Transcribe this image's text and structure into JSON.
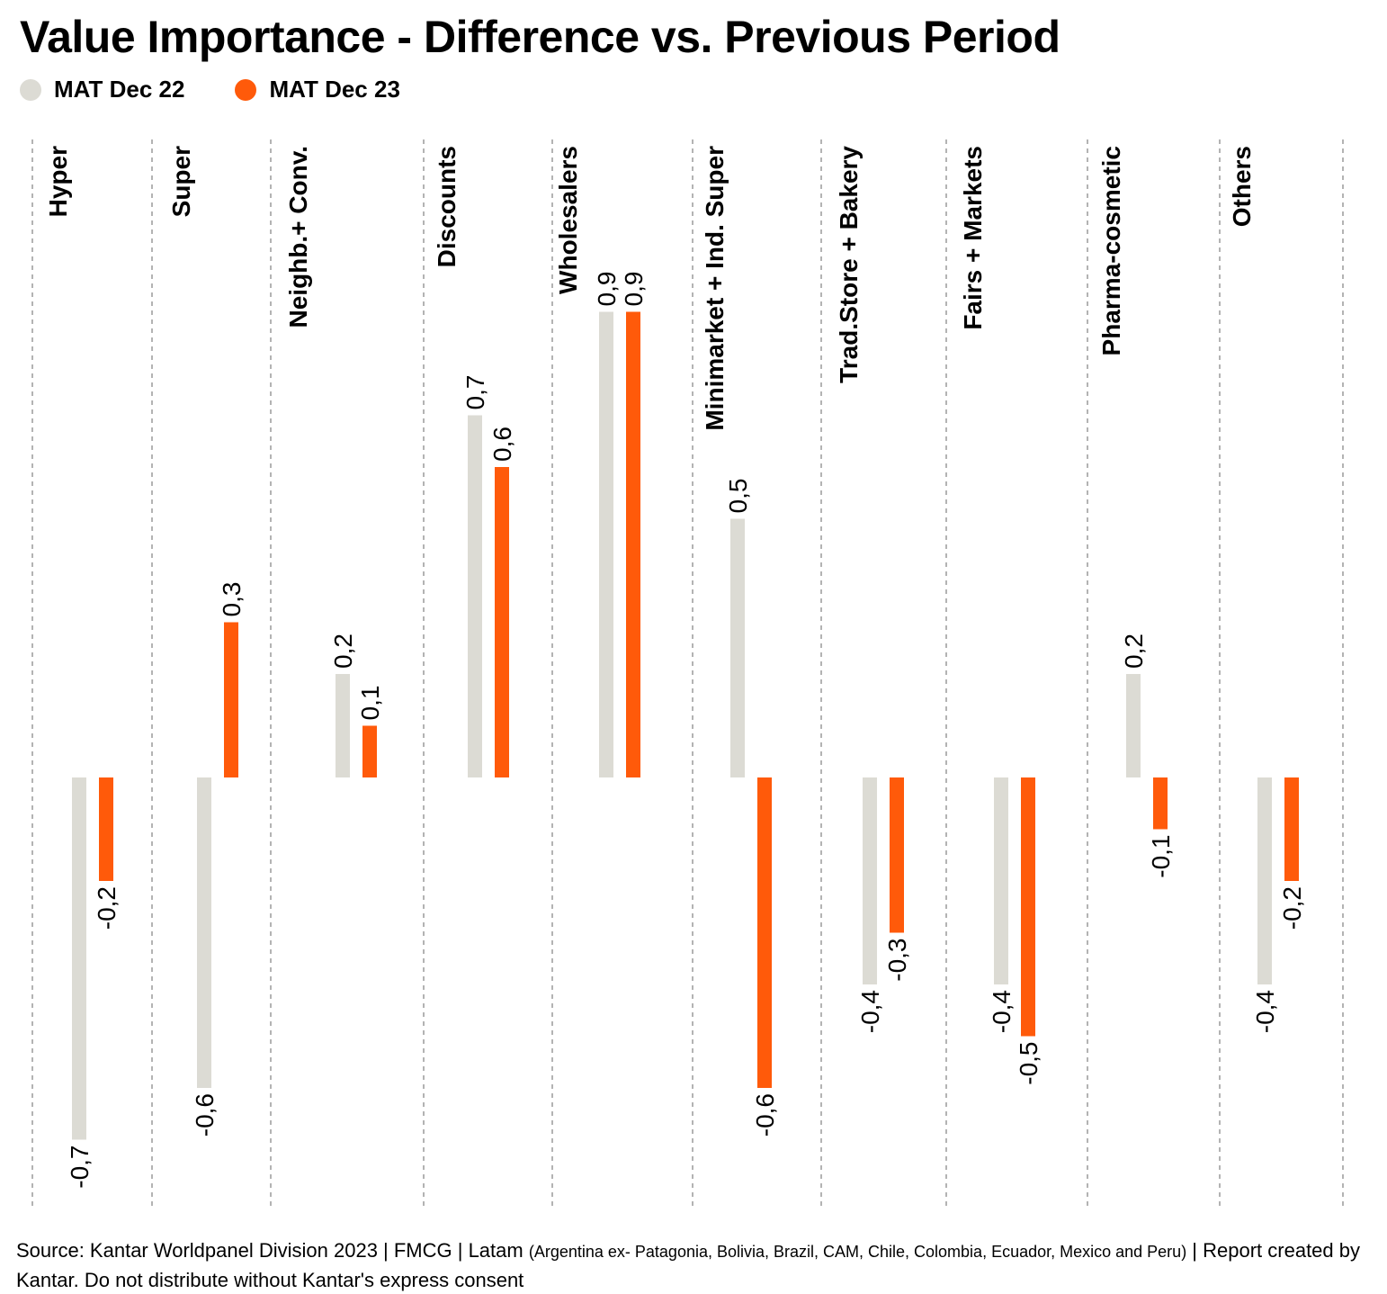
{
  "title": "Value Importance - Difference vs. Previous Period",
  "legend": [
    {
      "label": "MAT Dec 22",
      "color": "#dcdbd4"
    },
    {
      "label": "MAT Dec 23",
      "color": "#ff5a0a"
    }
  ],
  "source": {
    "main": "Source: Kantar Worldpanel Division 2023 | FMCG | Latam ",
    "countries": "(Argentina ex- Patagonia, Bolivia, Brazil, CAM, Chile, Colombia, Ecuador, Mexico and Peru)",
    "tail": " | Report created by Kantar. Do not distribute without Kantar's express consent"
  },
  "chart_data": {
    "type": "bar",
    "categories": [
      "Hyper",
      "Super",
      "Neighb.+ Conv.",
      "Discounts",
      "Wholesalers",
      "Minimarket + Ind. Super",
      "Trad.Store + Bakery",
      "Fairs + Markets",
      "Pharma-cosmetic",
      "Others"
    ],
    "series": [
      {
        "name": "MAT Dec 22",
        "color": "#dcdbd4",
        "values": [
          -0.7,
          -0.6,
          0.2,
          0.7,
          0.9,
          0.5,
          -0.4,
          -0.4,
          0.2,
          -0.4
        ],
        "labels": [
          "-0,7",
          "-0,6",
          "0,2",
          "0,7",
          "0,9",
          "0,5",
          "-0,4",
          "-0,4",
          "0,2",
          "-0,4"
        ]
      },
      {
        "name": "MAT Dec 23",
        "color": "#ff5a0a",
        "values": [
          -0.2,
          0.3,
          0.1,
          0.6,
          0.9,
          -0.6,
          -0.3,
          -0.5,
          -0.1,
          -0.2
        ],
        "labels": [
          "-0,2",
          "0,3",
          "0,1",
          "0,6",
          "0,9",
          "-0,6",
          "-0,3",
          "-0,5",
          "-0,1",
          "-0,2"
        ]
      }
    ],
    "ylim": [
      -0.7,
      0.9
    ],
    "grid": "vertical dashed separators",
    "legend_position": "top-left"
  }
}
